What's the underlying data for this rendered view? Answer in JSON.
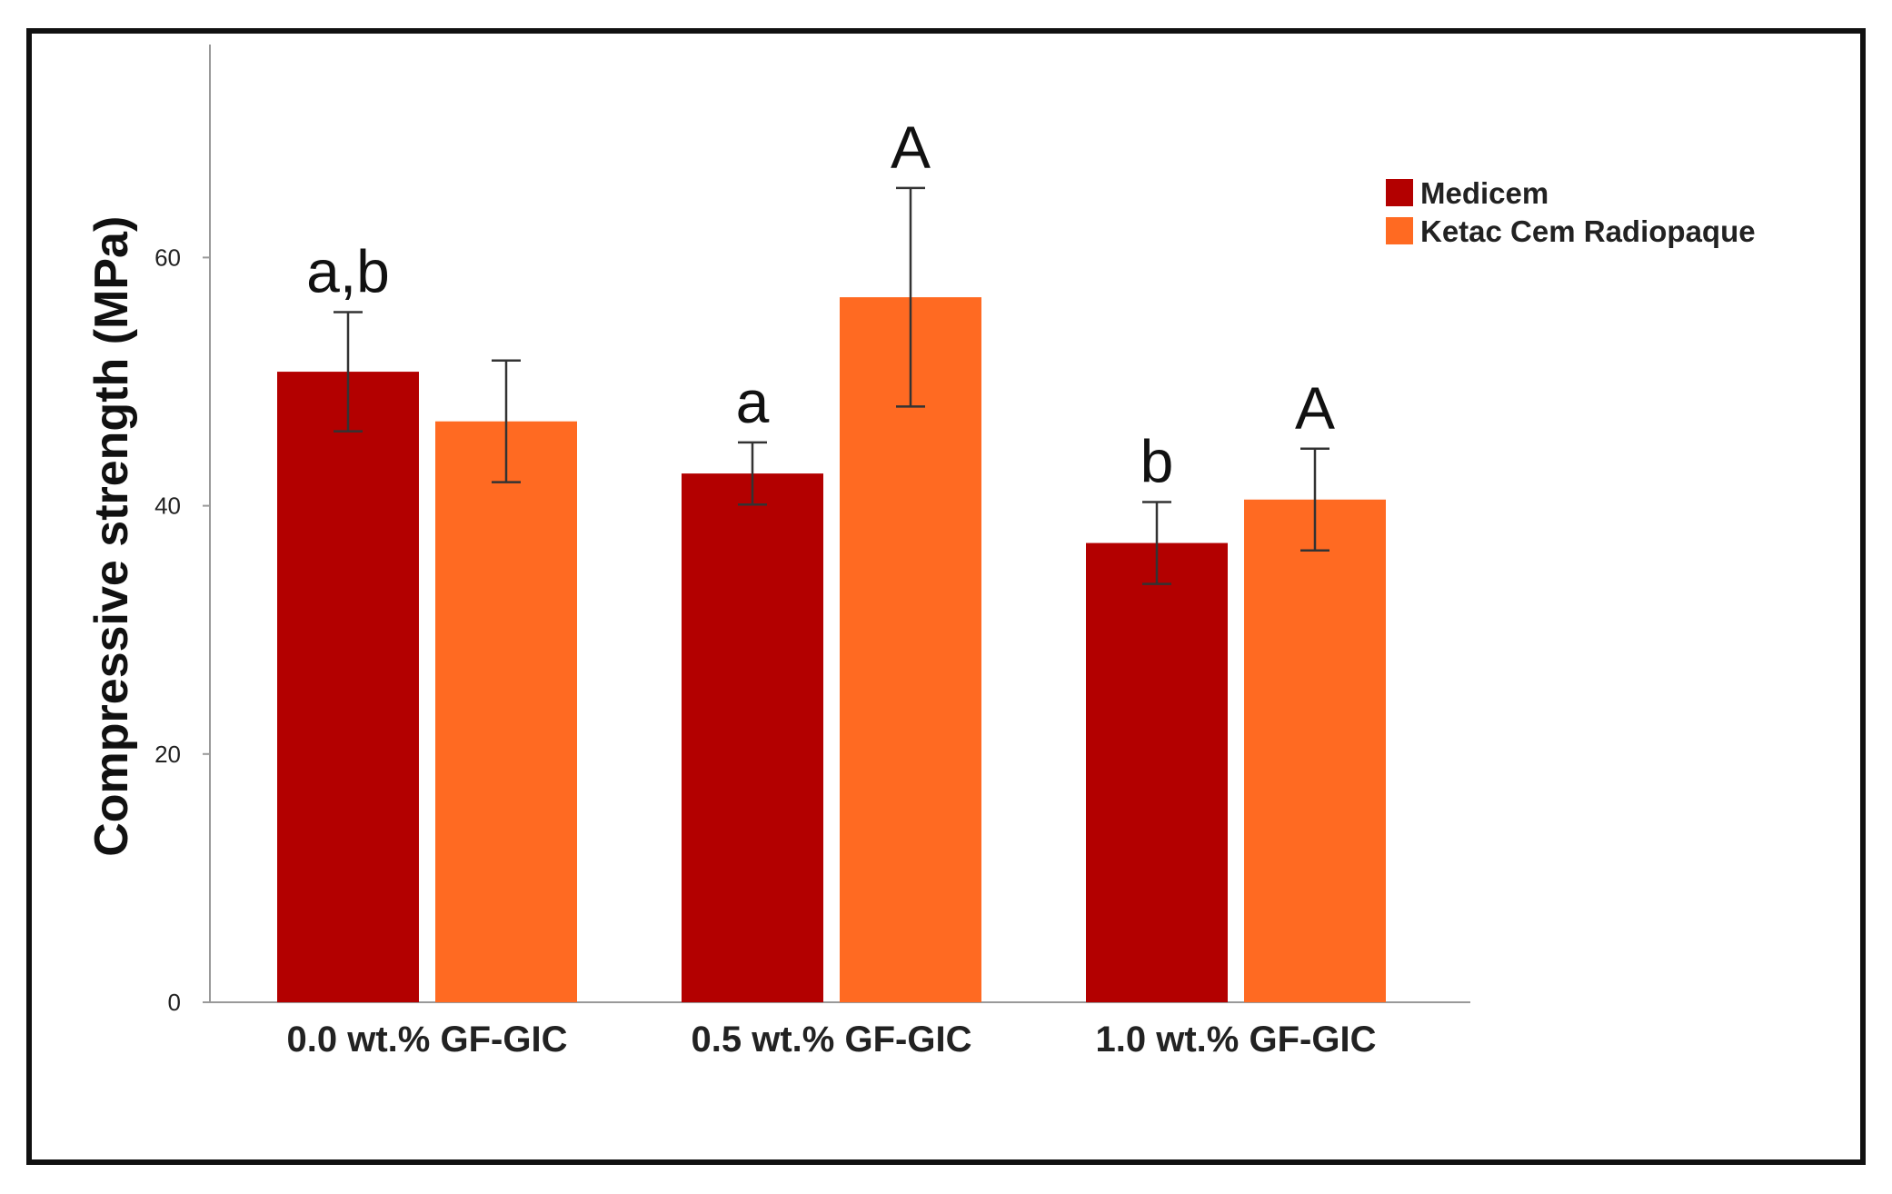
{
  "chart_data": {
    "type": "bar",
    "title": "",
    "xlabel": "",
    "ylabel": "Compressive strength (MPa)",
    "ylim": [
      0,
      78
    ],
    "yticks": [
      0,
      20,
      40,
      60
    ],
    "grid": false,
    "legend_position": "top-right",
    "categories": [
      "0.0 wt.% GF-GIC",
      "0.5 wt.% GF-GIC",
      "1.0 wt.% GF-GIC"
    ],
    "series": [
      {
        "name": "Medicem",
        "color": "#b30000",
        "values": [
          50.8,
          42.6,
          37.0
        ],
        "error": [
          4.8,
          2.5,
          3.3
        ],
        "annotations": [
          "a,b",
          "a",
          "b"
        ]
      },
      {
        "name": "Ketac Cem Radiopaque",
        "color": "#ff6a22",
        "values": [
          46.8,
          56.8,
          40.5
        ],
        "error": [
          4.9,
          8.8,
          4.1
        ],
        "annotations": [
          "",
          "A",
          "A"
        ]
      }
    ]
  }
}
